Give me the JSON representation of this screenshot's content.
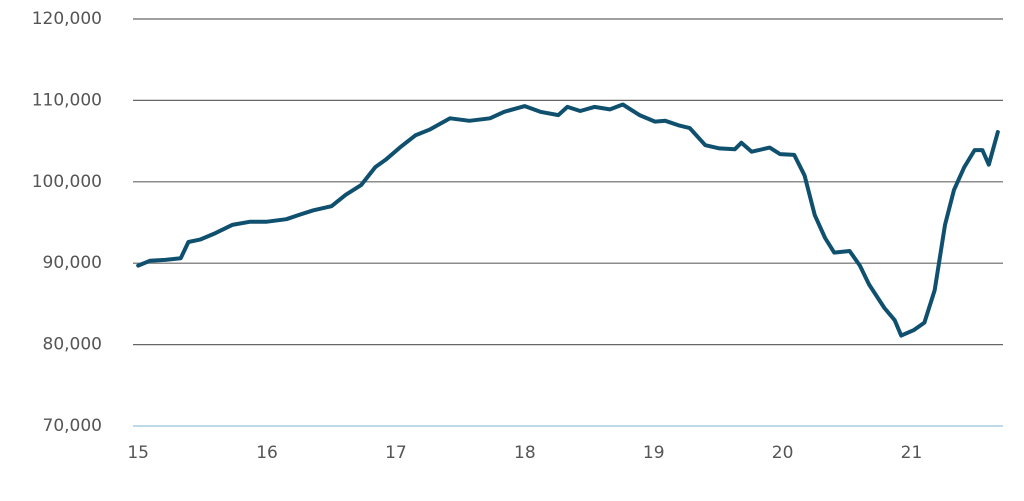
{
  "chart_data": {
    "type": "line",
    "x": [
      15.0,
      15.09,
      15.21,
      15.33,
      15.39,
      15.48,
      15.6,
      15.73,
      15.87,
      16.0,
      16.15,
      16.26,
      16.36,
      16.5,
      16.61,
      16.73,
      16.84,
      16.92,
      17.03,
      17.15,
      17.26,
      17.42,
      17.57,
      17.73,
      17.84,
      18.0,
      18.12,
      18.26,
      18.33,
      18.43,
      18.54,
      18.66,
      18.76,
      18.89,
      19.01,
      19.09,
      19.2,
      19.28,
      19.4,
      19.51,
      19.63,
      19.68,
      19.76,
      19.9,
      19.98,
      20.09,
      20.17,
      20.25,
      20.33,
      20.4,
      20.52,
      20.6,
      20.67,
      20.79,
      20.87,
      20.92,
      21.02,
      21.1,
      21.18,
      21.26,
      21.33,
      21.41,
      21.49,
      21.55,
      21.6,
      21.67
    ],
    "series": [
      {
        "color": "#10506f",
        "values": [
          89700,
          90300,
          90400,
          90600,
          92600,
          92900,
          93700,
          94700,
          95100,
          95100,
          95400,
          96000,
          96500,
          97000,
          98400,
          99600,
          101800,
          102700,
          104200,
          105700,
          106400,
          107800,
          107500,
          107800,
          108600,
          109300,
          108600,
          108200,
          109200,
          108700,
          109200,
          108900,
          109500,
          108200,
          107400,
          107500,
          106900,
          106600,
          104500,
          104100,
          104000,
          104800,
          103700,
          104200,
          103400,
          103300,
          100800,
          95900,
          93100,
          91300,
          91500,
          89700,
          87400,
          84500,
          83000,
          81100,
          81800,
          82700,
          86700,
          94700,
          99000,
          101800,
          103900,
          103900,
          102100,
          106100
        ]
      }
    ],
    "xlim": [
      14.96,
      21.71
    ],
    "xticks": [
      15,
      16,
      17,
      18,
      19,
      20,
      21
    ],
    "ylim": [
      70000,
      120000
    ],
    "yticks": [
      {
        "value": 70000,
        "label": "70,000"
      },
      {
        "value": 80000,
        "label": "80,000"
      },
      {
        "value": 90000,
        "label": "90,000"
      },
      {
        "value": 100000,
        "label": "100,000"
      },
      {
        "value": 110000,
        "label": "110,000"
      },
      {
        "value": 120000,
        "label": "120,000"
      }
    ],
    "grid": true
  }
}
